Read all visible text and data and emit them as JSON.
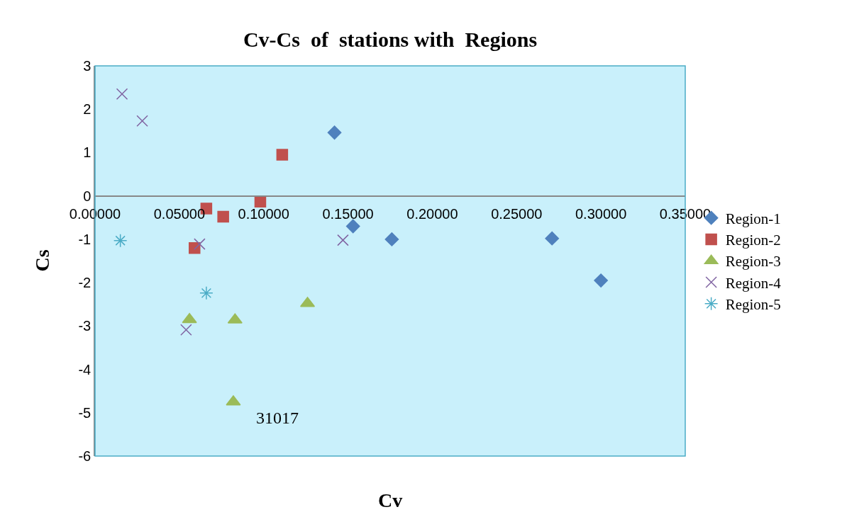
{
  "chart_data": {
    "type": "scatter",
    "title": "Cv-Cs  of  stations with  Regions",
    "xlabel": "Cv",
    "ylabel": "Cs",
    "xlim": [
      0,
      0.35
    ],
    "ylim": [
      -6,
      3
    ],
    "xticks": [
      {
        "value": 0,
        "label": "0.00000"
      },
      {
        "value": 0.05,
        "label": "0.05000"
      },
      {
        "value": 0.1,
        "label": "0.10000"
      },
      {
        "value": 0.15,
        "label": "0.15000"
      },
      {
        "value": 0.2,
        "label": "0.20000"
      },
      {
        "value": 0.25,
        "label": "0.25000"
      },
      {
        "value": 0.3,
        "label": "0.30000"
      },
      {
        "value": 0.35,
        "label": "0.35000"
      }
    ],
    "yticks": [
      3,
      2,
      1,
      0,
      -1,
      -2,
      -3,
      -4,
      -5,
      -6
    ],
    "grid": false,
    "legend": "right",
    "series": [
      {
        "name": "Region-1",
        "color": "#4f81bd",
        "marker": "diamond",
        "x": [
          0.142,
          0.153,
          0.176,
          0.271,
          0.3
        ],
        "values": [
          1.46,
          -0.7,
          -1.0,
          -0.98,
          -1.95
        ]
      },
      {
        "name": "Region-2",
        "color": "#c0504d",
        "marker": "square",
        "x": [
          0.111,
          0.098,
          0.066,
          0.076,
          0.059
        ],
        "values": [
          0.95,
          -0.13,
          -0.29,
          -0.48,
          -1.2
        ]
      },
      {
        "name": "Region-3",
        "color": "#9bbb59",
        "marker": "triangle",
        "x": [
          0.056,
          0.083,
          0.126,
          0.082
        ],
        "values": [
          -2.85,
          -2.86,
          -2.48,
          -4.75
        ]
      },
      {
        "name": "Region-4",
        "color": "#8064a2",
        "marker": "cross",
        "x": [
          0.016,
          0.028,
          0.062,
          0.147,
          0.054
        ],
        "values": [
          2.35,
          1.73,
          -1.11,
          -1.02,
          -3.09
        ]
      },
      {
        "name": "Region-5",
        "color": "#4bacc6",
        "marker": "cross",
        "x": [
          0.015,
          0.066
        ],
        "values": [
          -1.03,
          -2.24
        ]
      }
    ],
    "annotations": [
      {
        "text": "31017",
        "x": 0.082,
        "y": -4.75
      }
    ]
  }
}
